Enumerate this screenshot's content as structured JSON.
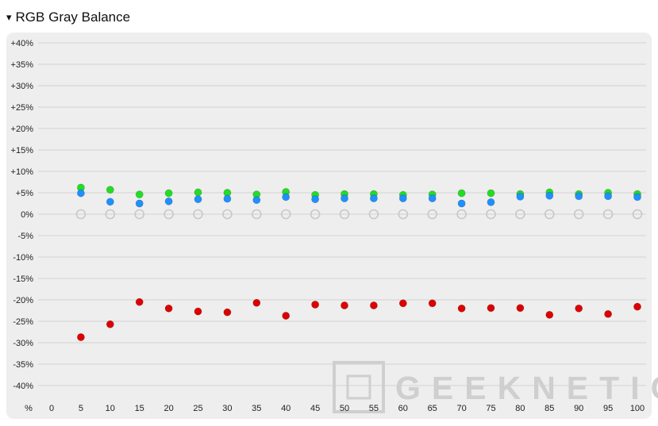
{
  "section": {
    "caret": "▾",
    "title": "RGB Gray Balance"
  },
  "watermark": {
    "text": "GEEKNETIC"
  },
  "chart_data": {
    "type": "scatter",
    "title": "RGB Gray Balance",
    "x_unit_label": "%",
    "x": [
      0,
      5,
      10,
      15,
      20,
      25,
      30,
      35,
      40,
      45,
      50,
      55,
      60,
      65,
      70,
      75,
      80,
      85,
      90,
      95,
      100
    ],
    "x_tick_labels": [
      "0",
      "5",
      "10",
      "15",
      "20",
      "25",
      "30",
      "35",
      "40",
      "45",
      "50",
      "55",
      "60",
      "65",
      "70",
      "75",
      "80",
      "85",
      "90",
      "95",
      "100"
    ],
    "y_ticks": [
      40,
      35,
      30,
      25,
      20,
      15,
      10,
      5,
      0,
      -5,
      -10,
      -15,
      -20,
      -25,
      -30,
      -35,
      -40
    ],
    "y_tick_labels": [
      "+40%",
      "+35%",
      "+30%",
      "+25%",
      "+20%",
      "+15%",
      "+10%",
      "+5%",
      "0%",
      "-5%",
      "-10%",
      "-15%",
      "-20%",
      "-25%",
      "-30%",
      "-35%",
      "-40%"
    ],
    "ylim": [
      -40,
      40
    ],
    "grid": true,
    "series": [
      {
        "key": "reference",
        "color": "#c8c8c8",
        "hollow": true,
        "x": [
          5,
          10,
          15,
          20,
          25,
          30,
          35,
          40,
          45,
          50,
          55,
          60,
          65,
          70,
          75,
          80,
          85,
          90,
          95,
          100
        ],
        "values": [
          0,
          0,
          0,
          0,
          0,
          0,
          0,
          0,
          0,
          0,
          0,
          0,
          0,
          0,
          0,
          0,
          0,
          0,
          0,
          0
        ]
      },
      {
        "key": "green",
        "color": "#22dd22",
        "hollow": false,
        "x": [
          5,
          10,
          15,
          20,
          25,
          30,
          35,
          40,
          45,
          50,
          55,
          60,
          65,
          70,
          75,
          80,
          85,
          90,
          95,
          100
        ],
        "values": [
          6.2,
          5.7,
          4.6,
          4.9,
          5.1,
          5.0,
          4.6,
          5.2,
          4.5,
          4.7,
          4.7,
          4.5,
          4.6,
          4.9,
          4.9,
          4.7,
          5.1,
          4.7,
          5.0,
          4.7
        ]
      },
      {
        "key": "blue",
        "color": "#1e90ff",
        "hollow": false,
        "x": [
          5,
          10,
          15,
          20,
          25,
          30,
          35,
          40,
          45,
          50,
          55,
          60,
          65,
          70,
          75,
          80,
          85,
          90,
          95,
          100
        ],
        "values": [
          4.9,
          2.9,
          2.5,
          3.0,
          3.5,
          3.6,
          3.3,
          4.0,
          3.5,
          3.7,
          3.7,
          3.7,
          3.7,
          2.5,
          2.8,
          4.1,
          4.3,
          4.2,
          4.2,
          4.0
        ]
      },
      {
        "key": "red",
        "color": "#dd0000",
        "hollow": false,
        "x": [
          5,
          10,
          15,
          20,
          25,
          30,
          35,
          40,
          45,
          50,
          55,
          60,
          65,
          70,
          75,
          80,
          85,
          90,
          95,
          100
        ],
        "values": [
          -28.7,
          -25.7,
          -20.5,
          -22.0,
          -22.7,
          -22.9,
          -20.7,
          -23.7,
          -21.1,
          -21.3,
          -21.3,
          -20.8,
          -20.8,
          -22.0,
          -21.9,
          -21.9,
          -23.5,
          -22.0,
          -23.3,
          -21.6
        ]
      }
    ]
  }
}
